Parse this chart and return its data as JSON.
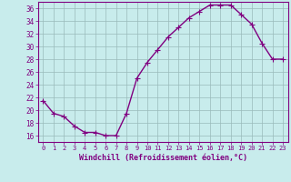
{
  "x": [
    0,
    1,
    2,
    3,
    4,
    5,
    6,
    7,
    8,
    9,
    10,
    11,
    12,
    13,
    14,
    15,
    16,
    17,
    18,
    19,
    20,
    21,
    22,
    23
  ],
  "y": [
    21.5,
    19.5,
    19.0,
    17.5,
    16.5,
    16.5,
    16.0,
    16.0,
    19.5,
    25.0,
    27.5,
    29.5,
    31.5,
    33.0,
    34.5,
    35.5,
    36.5,
    36.5,
    36.5,
    35.0,
    33.5,
    30.5,
    28.0,
    28.0
  ],
  "line_color": "#800080",
  "marker": "+",
  "marker_color": "#800080",
  "bg_color": "#c8ecec",
  "grid_color": "#9ababa",
  "spine_color": "#800080",
  "xlabel": "Windchill (Refroidissement éolien,°C)",
  "xlabel_color": "#800080",
  "tick_color": "#800080",
  "xlim": [
    -0.5,
    23.5
  ],
  "ylim": [
    15.0,
    37.0
  ],
  "yticks": [
    16,
    18,
    20,
    22,
    24,
    26,
    28,
    30,
    32,
    34,
    36
  ],
  "xticks": [
    0,
    1,
    2,
    3,
    4,
    5,
    6,
    7,
    8,
    9,
    10,
    11,
    12,
    13,
    14,
    15,
    16,
    17,
    18,
    19,
    20,
    21,
    22,
    23
  ],
  "linewidth": 1.0,
  "markersize": 4
}
